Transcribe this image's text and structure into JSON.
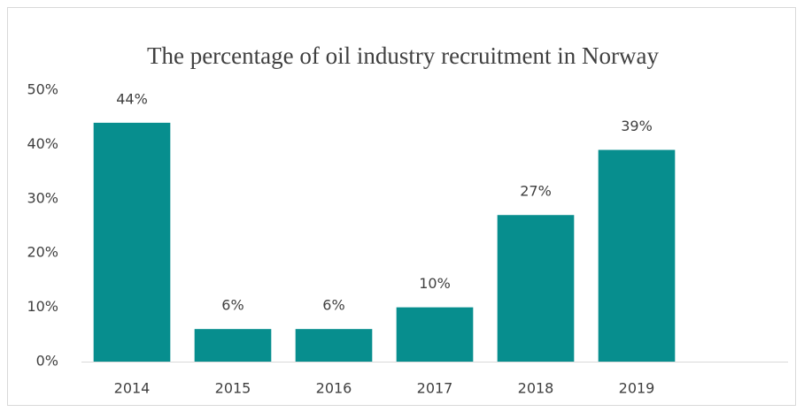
{
  "chart_data": {
    "type": "bar",
    "title": "The percentage of oil industry recruitment in Norway",
    "categories": [
      "2014",
      "2015",
      "2016",
      "2017",
      "2018",
      "2019",
      null
    ],
    "values": [
      44,
      6,
      6,
      10,
      27,
      39,
      null
    ],
    "value_labels": [
      "44%",
      "6%",
      "6%",
      "10%",
      "27%",
      "39%",
      null
    ],
    "color": "#078e8e",
    "ylim": [
      0,
      50
    ],
    "yticks": [
      {
        "value": 0,
        "label": "0%"
      },
      {
        "value": 10,
        "label": "10%"
      },
      {
        "value": 20,
        "label": "20%"
      },
      {
        "value": 30,
        "label": "30%"
      },
      {
        "value": 40,
        "label": "40%"
      },
      {
        "value": 50,
        "label": "50%"
      }
    ],
    "grid": false
  }
}
